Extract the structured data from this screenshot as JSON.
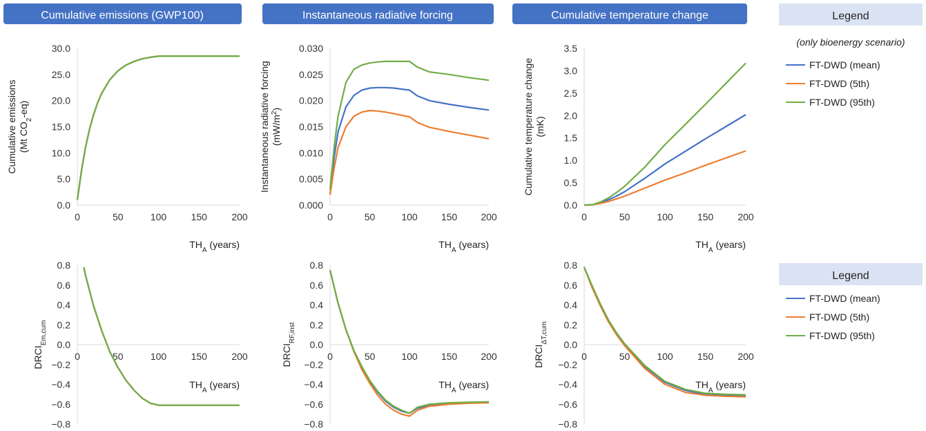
{
  "colors": {
    "mean": "#4472c4",
    "p5": "#ed7d31",
    "p95": "#70ad47",
    "banner": "#4472c4",
    "legend_box": "#dae3f3",
    "axis": "#d9d9d9"
  },
  "panel_titles": [
    "Cumulative emissions (GWP100)",
    "Instantaneous radiative forcing",
    "Cumulative temperature change"
  ],
  "legends": [
    {
      "title": "Legend",
      "note": "(only bioenergy scenario)",
      "items": [
        "FT-DWD (mean)",
        "FT-DWD (5th)",
        "FT-DWD (95th)"
      ]
    },
    {
      "title": "Legend",
      "items": [
        "FT-DWD (mean)",
        "FT-DWD (5th)",
        "FT-DWD (95th)"
      ]
    }
  ],
  "chart_data": [
    {
      "type": "line",
      "title": "Cumulative emissions (GWP100)",
      "ylabel": "Cumulative emissions (Mt CO2-eq)",
      "xlabel": "THA (years)",
      "xlim": [
        0,
        200
      ],
      "ylim": [
        0,
        30
      ],
      "xticks": [
        "0",
        "50",
        "100",
        "150",
        "200"
      ],
      "yticks": [
        "0.0",
        "5.0",
        "10.0",
        "15.0",
        "20.0",
        "25.0",
        "30.0"
      ],
      "x": [
        0,
        5,
        10,
        15,
        20,
        25,
        30,
        40,
        50,
        60,
        70,
        80,
        90,
        100,
        150,
        200
      ],
      "series": [
        {
          "name": "FT-DWD (mean)",
          "color": "mean",
          "values": [
            1.0,
            6.5,
            11.0,
            14.5,
            17.3,
            19.6,
            21.4,
            24.0,
            25.7,
            26.8,
            27.5,
            28.0,
            28.3,
            28.5,
            28.5,
            28.5
          ]
        },
        {
          "name": "FT-DWD (5th)",
          "color": "p5",
          "values": [
            1.0,
            6.5,
            11.0,
            14.5,
            17.3,
            19.6,
            21.4,
            24.0,
            25.7,
            26.8,
            27.5,
            28.0,
            28.3,
            28.5,
            28.5,
            28.5
          ]
        },
        {
          "name": "FT-DWD (95th)",
          "color": "p95",
          "values": [
            1.0,
            6.5,
            11.0,
            14.5,
            17.3,
            19.6,
            21.4,
            24.0,
            25.7,
            26.8,
            27.5,
            28.0,
            28.3,
            28.5,
            28.5,
            28.5
          ]
        }
      ]
    },
    {
      "type": "line",
      "title": "Instantaneous radiative forcing",
      "ylabel": "Instantaneous radiative forcing (mW/m2)",
      "xlabel": "THA (years)",
      "xlim": [
        0,
        200
      ],
      "ylim": [
        0,
        0.03
      ],
      "xticks": [
        "0",
        "50",
        "100",
        "150",
        "200"
      ],
      "yticks": [
        "0.000",
        "0.005",
        "0.010",
        "0.015",
        "0.020",
        "0.025",
        "0.030"
      ],
      "x": [
        0,
        5,
        10,
        20,
        30,
        40,
        50,
        60,
        70,
        80,
        90,
        100,
        110,
        125,
        150,
        175,
        200
      ],
      "series": [
        {
          "name": "FT-DWD (mean)",
          "color": "mean",
          "values": [
            0.002,
            0.009,
            0.014,
            0.0188,
            0.021,
            0.022,
            0.0224,
            0.0225,
            0.0225,
            0.0224,
            0.0222,
            0.022,
            0.0209,
            0.02,
            0.0193,
            0.0187,
            0.0182
          ]
        },
        {
          "name": "FT-DWD (5th)",
          "color": "p5",
          "values": [
            0.002,
            0.007,
            0.011,
            0.015,
            0.017,
            0.0178,
            0.0181,
            0.018,
            0.0178,
            0.0175,
            0.0172,
            0.0169,
            0.0158,
            0.0149,
            0.0141,
            0.0134,
            0.0127
          ]
        },
        {
          "name": "FT-DWD (95th)",
          "color": "p95",
          "values": [
            0.003,
            0.011,
            0.017,
            0.0235,
            0.026,
            0.0268,
            0.0272,
            0.0274,
            0.0275,
            0.0275,
            0.0275,
            0.0275,
            0.0264,
            0.0255,
            0.025,
            0.0244,
            0.0239
          ]
        }
      ]
    },
    {
      "type": "line",
      "title": "Cumulative temperature change",
      "ylabel": "Cumulative temperature change (mK)",
      "xlabel": "THA (years)",
      "xlim": [
        0,
        200
      ],
      "ylim": [
        0,
        3.5
      ],
      "xticks": [
        "0",
        "50",
        "100",
        "150",
        "200"
      ],
      "yticks": [
        "0.0",
        "0.5",
        "1.0",
        "1.5",
        "2.0",
        "2.5",
        "3.0",
        "3.5"
      ],
      "x": [
        0,
        10,
        20,
        30,
        40,
        50,
        75,
        100,
        125,
        150,
        175,
        200
      ],
      "series": [
        {
          "name": "FT-DWD (mean)",
          "color": "mean",
          "values": [
            0.0,
            0.01,
            0.05,
            0.12,
            0.2,
            0.3,
            0.6,
            0.92,
            1.2,
            1.48,
            1.75,
            2.02
          ]
        },
        {
          "name": "FT-DWD (5th)",
          "color": "p5",
          "values": [
            0.0,
            0.01,
            0.04,
            0.08,
            0.14,
            0.2,
            0.38,
            0.56,
            0.72,
            0.89,
            1.05,
            1.21
          ]
        },
        {
          "name": "FT-DWD (95th)",
          "color": "p95",
          "values": [
            0.0,
            0.01,
            0.07,
            0.16,
            0.28,
            0.42,
            0.85,
            1.35,
            1.8,
            2.25,
            2.71,
            3.17
          ]
        }
      ]
    },
    {
      "type": "line",
      "ylabel": "DRCIEm,cum",
      "ylabel_main": "DRCI",
      "ylabel_sub": "Em,cum",
      "xlabel": "THA (years)",
      "xlim": [
        0,
        200
      ],
      "ylim": [
        -0.8,
        0.8
      ],
      "xticks": [
        "0",
        "50",
        "100",
        "150",
        "200"
      ],
      "yticks": [
        "−0.8",
        "−0.6",
        "−0.4",
        "−0.2",
        "0.0",
        "0.2",
        "0.4",
        "0.6",
        "0.8"
      ],
      "x": [
        8,
        10,
        20,
        30,
        40,
        50,
        60,
        70,
        80,
        90,
        100,
        150,
        200
      ],
      "series": [
        {
          "name": "FT-DWD (mean)",
          "color": "mean",
          "values": [
            0.78,
            0.7,
            0.39,
            0.14,
            -0.07,
            -0.23,
            -0.36,
            -0.46,
            -0.54,
            -0.59,
            -0.61,
            -0.61,
            -0.61
          ]
        },
        {
          "name": "FT-DWD (5th)",
          "color": "p5",
          "values": [
            0.78,
            0.7,
            0.39,
            0.14,
            -0.07,
            -0.23,
            -0.36,
            -0.46,
            -0.54,
            -0.59,
            -0.61,
            -0.61,
            -0.61
          ]
        },
        {
          "name": "FT-DWD (95th)",
          "color": "p95",
          "values": [
            0.78,
            0.7,
            0.39,
            0.14,
            -0.07,
            -0.23,
            -0.36,
            -0.46,
            -0.54,
            -0.59,
            -0.61,
            -0.61,
            -0.61
          ]
        }
      ]
    },
    {
      "type": "line",
      "ylabel": "DRCIRF,inst",
      "ylabel_main": "DRCI",
      "ylabel_sub": "RF,inst",
      "xlabel": "THA (years)",
      "xlim": [
        0,
        200
      ],
      "ylim": [
        -0.8,
        0.8
      ],
      "xticks": [
        "0",
        "50",
        "100",
        "150",
        "200"
      ],
      "yticks": [
        "−0.8",
        "−0.6",
        "−0.4",
        "−0.2",
        "0.0",
        "0.2",
        "0.4",
        "0.6",
        "0.8"
      ],
      "x": [
        0,
        10,
        20,
        30,
        40,
        50,
        60,
        70,
        80,
        90,
        100,
        110,
        125,
        150,
        175,
        200
      ],
      "series": [
        {
          "name": "FT-DWD (mean)",
          "color": "mean",
          "values": [
            0.75,
            0.42,
            0.15,
            -0.06,
            -0.23,
            -0.37,
            -0.48,
            -0.57,
            -0.63,
            -0.67,
            -0.69,
            -0.64,
            -0.61,
            -0.59,
            -0.585,
            -0.58
          ]
        },
        {
          "name": "FT-DWD (5th)",
          "color": "p5",
          "values": [
            0.75,
            0.42,
            0.15,
            -0.07,
            -0.25,
            -0.39,
            -0.51,
            -0.6,
            -0.66,
            -0.7,
            -0.72,
            -0.66,
            -0.62,
            -0.6,
            -0.59,
            -0.585
          ]
        },
        {
          "name": "FT-DWD (95th)",
          "color": "p95",
          "values": [
            0.75,
            0.42,
            0.15,
            -0.06,
            -0.22,
            -0.36,
            -0.47,
            -0.56,
            -0.62,
            -0.66,
            -0.69,
            -0.63,
            -0.6,
            -0.585,
            -0.58,
            -0.575
          ]
        }
      ]
    },
    {
      "type": "line",
      "ylabel": "DRCIΔT,cum",
      "ylabel_main": "DRCI",
      "ylabel_sub": "ΔT,cum",
      "xlabel": "THA (years)",
      "xlim": [
        0,
        200
      ],
      "ylim": [
        -0.8,
        0.8
      ],
      "xticks": [
        "0",
        "50",
        "100",
        "150",
        "200"
      ],
      "yticks": [
        "−0.8",
        "−0.6",
        "−0.4",
        "−0.2",
        "0.0",
        "0.2",
        "0.4",
        "0.6",
        "0.8"
      ],
      "x": [
        0,
        10,
        20,
        30,
        40,
        50,
        75,
        100,
        125,
        150,
        175,
        200
      ],
      "series": [
        {
          "name": "FT-DWD (mean)",
          "color": "mean",
          "values": [
            0.78,
            0.58,
            0.4,
            0.24,
            0.11,
            0.0,
            -0.22,
            -0.38,
            -0.46,
            -0.5,
            -0.51,
            -0.515
          ]
        },
        {
          "name": "FT-DWD (5th)",
          "color": "p5",
          "values": [
            0.78,
            0.57,
            0.39,
            0.23,
            0.1,
            -0.01,
            -0.24,
            -0.4,
            -0.48,
            -0.51,
            -0.52,
            -0.525
          ]
        },
        {
          "name": "FT-DWD (95th)",
          "color": "p95",
          "values": [
            0.78,
            0.59,
            0.41,
            0.25,
            0.12,
            0.01,
            -0.21,
            -0.37,
            -0.45,
            -0.49,
            -0.5,
            -0.505
          ]
        }
      ]
    }
  ]
}
